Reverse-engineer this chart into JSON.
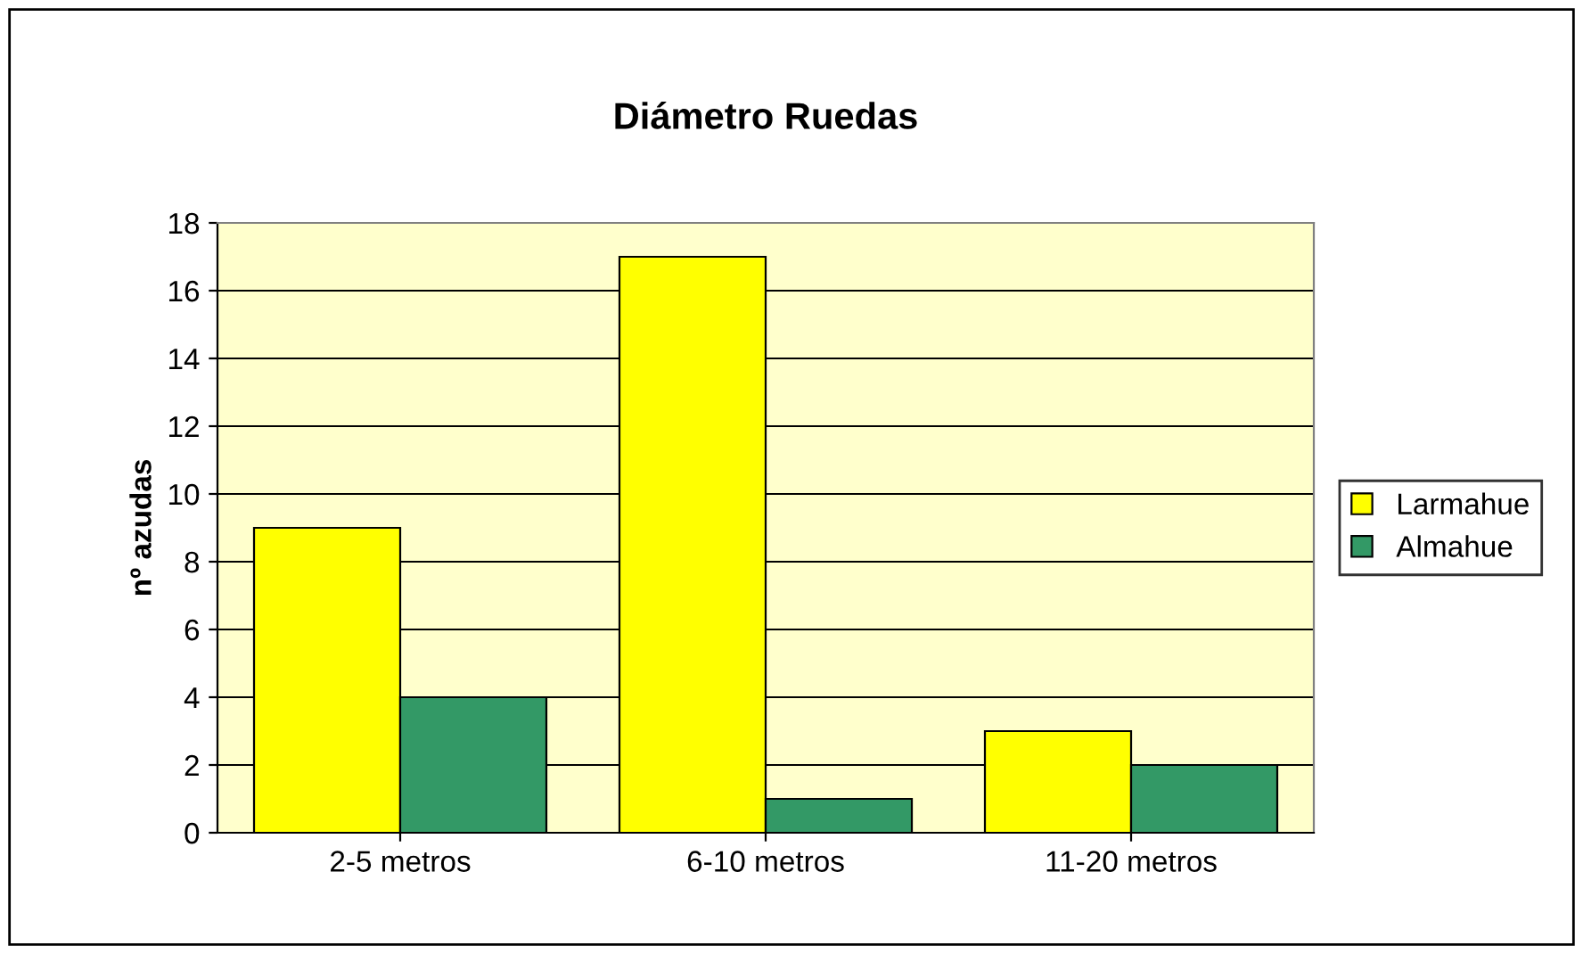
{
  "chart_data": {
    "type": "bar",
    "title": "Diámetro Ruedas",
    "ylabel": "nº azudas",
    "categories": [
      "2-5 metros",
      "6-10 metros",
      "11-20 metros"
    ],
    "series": [
      {
        "name": "Larmahue",
        "color": "#ffff00",
        "values": [
          9,
          17,
          3
        ]
      },
      {
        "name": "Almahue",
        "color": "#339966",
        "values": [
          4,
          1,
          2
        ]
      }
    ],
    "ylim": [
      0,
      18
    ],
    "yticks": [
      0,
      2,
      4,
      6,
      8,
      10,
      12,
      14,
      16,
      18
    ],
    "grid": "y",
    "legend": "right"
  }
}
